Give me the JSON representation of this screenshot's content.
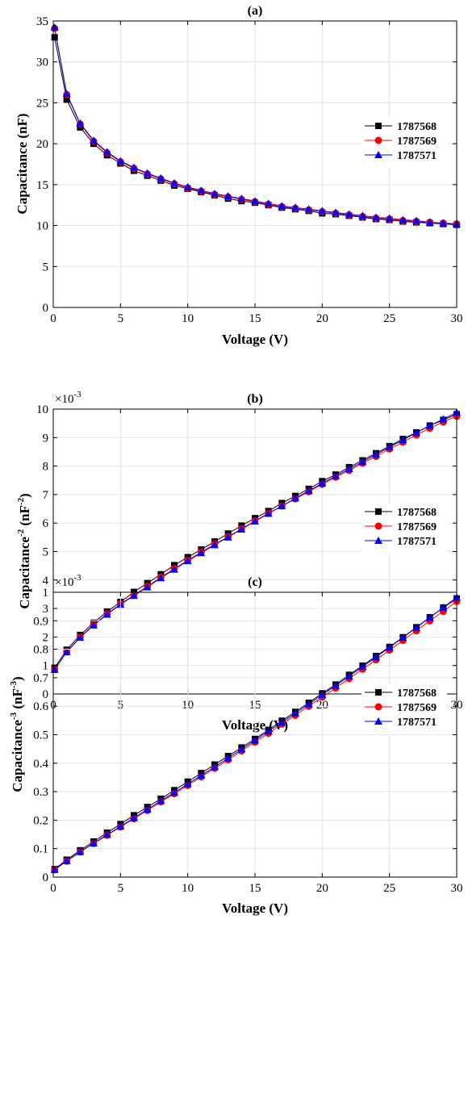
{
  "chart_data": [
    {
      "type": "line",
      "title": "(a)",
      "xlabel": "Voltage (V)",
      "ylabel": "Capacitance (nF)",
      "ylabel_sup": "",
      "ylabel_tail": "",
      "exponent": "",
      "xlim": [
        0,
        30
      ],
      "ylim": [
        0,
        35
      ],
      "xticks": [
        "0",
        "5",
        "10",
        "15",
        "20",
        "25",
        "30"
      ],
      "yticks": [
        "0",
        "5",
        "10",
        "15",
        "20",
        "25",
        "30",
        "35"
      ],
      "grid": true,
      "legend": "center-right",
      "x": [
        0.1,
        1,
        2,
        3,
        4,
        5,
        6,
        7,
        8,
        9,
        10,
        11,
        12,
        13,
        14,
        15,
        16,
        17,
        18,
        19,
        20,
        21,
        22,
        23,
        24,
        25,
        26,
        27,
        28,
        29,
        30
      ],
      "series": [
        {
          "name": "1787568",
          "color": "#000000",
          "marker": "square",
          "values": [
            33.0,
            25.4,
            22.0,
            20.0,
            18.6,
            17.6,
            16.7,
            16.1,
            15.5,
            14.9,
            14.5,
            14.1,
            13.7,
            13.3,
            13.0,
            12.8,
            12.5,
            12.2,
            12.0,
            11.8,
            11.5,
            11.4,
            11.2,
            11.0,
            10.8,
            10.7,
            10.5,
            10.4,
            10.3,
            10.2,
            10.1
          ]
        },
        {
          "name": "1787569",
          "color": "#ff0000",
          "marker": "circle",
          "values": [
            34.1,
            26.0,
            22.4,
            20.3,
            18.9,
            17.8,
            17.0,
            16.3,
            15.7,
            15.1,
            14.6,
            14.2,
            13.8,
            13.5,
            13.2,
            12.9,
            12.6,
            12.3,
            12.1,
            11.9,
            11.7,
            11.5,
            11.3,
            11.1,
            10.9,
            10.8,
            10.6,
            10.5,
            10.4,
            10.3,
            10.2
          ]
        },
        {
          "name": "1787571",
          "color": "#0000ff",
          "marker": "triangle",
          "values": [
            34.2,
            26.1,
            22.5,
            20.4,
            19.0,
            17.9,
            17.1,
            16.4,
            15.8,
            15.2,
            14.7,
            14.3,
            13.9,
            13.6,
            13.3,
            13.0,
            12.7,
            12.4,
            12.2,
            12.0,
            11.8,
            11.6,
            11.4,
            11.2,
            11.0,
            10.9,
            10.7,
            10.6,
            10.4,
            10.3,
            10.2
          ]
        }
      ]
    },
    {
      "type": "line",
      "title": "(b)",
      "xlabel": "Voltage (V)",
      "ylabel": "Capacitance",
      "ylabel_sup": "-2",
      "ylabel_tail": " (nF",
      "ylabel_tail_sup": "-2",
      "ylabel_close": ")",
      "exponent": "×10",
      "exponent_sup": "-3",
      "xlim": [
        0,
        30
      ],
      "ylim": [
        0,
        10
      ],
      "xticks": [
        "0",
        "5",
        "10",
        "15",
        "20",
        "25",
        "30"
      ],
      "yticks": [
        "0",
        "1",
        "2",
        "3",
        "4",
        "5",
        "6",
        "7",
        "8",
        "9",
        "10"
      ],
      "grid": true,
      "legend": "center-right",
      "x": [
        0.1,
        1,
        2,
        3,
        4,
        5,
        6,
        7,
        8,
        9,
        10,
        11,
        12,
        13,
        14,
        15,
        16,
        17,
        18,
        19,
        20,
        21,
        22,
        23,
        24,
        25,
        26,
        27,
        28,
        29,
        30
      ],
      "series": [
        {
          "name": "1787568",
          "color": "#000000",
          "marker": "square",
          "values": [
            0.92,
            1.55,
            2.07,
            2.5,
            2.89,
            3.23,
            3.58,
            3.89,
            4.2,
            4.52,
            4.8,
            5.07,
            5.35,
            5.63,
            5.91,
            6.17,
            6.42,
            6.7,
            6.95,
            7.2,
            7.47,
            7.7,
            7.96,
            8.2,
            8.45,
            8.7,
            8.95,
            9.18,
            9.42,
            9.62,
            9.82
          ]
        },
        {
          "name": "1787569",
          "color": "#ff0000",
          "marker": "circle",
          "values": [
            0.86,
            1.48,
            2.0,
            2.43,
            2.81,
            3.16,
            3.47,
            3.78,
            4.1,
            4.4,
            4.69,
            4.98,
            5.26,
            5.52,
            5.8,
            6.08,
            6.34,
            6.6,
            6.85,
            7.1,
            7.36,
            7.61,
            7.85,
            8.1,
            8.34,
            8.6,
            8.84,
            9.09,
            9.33,
            9.55,
            9.75
          ]
        },
        {
          "name": "1787571",
          "color": "#0000ff",
          "marker": "triangle",
          "values": [
            0.85,
            1.47,
            1.98,
            2.41,
            2.79,
            3.14,
            3.45,
            3.75,
            4.07,
            4.37,
            4.67,
            4.95,
            5.23,
            5.5,
            5.78,
            6.06,
            6.33,
            6.6,
            6.87,
            7.13,
            7.4,
            7.65,
            7.9,
            8.15,
            8.41,
            8.66,
            8.92,
            9.17,
            9.42,
            9.65,
            9.88
          ]
        }
      ]
    },
    {
      "type": "line",
      "title": "(c)",
      "xlabel": "Voltage (V)",
      "ylabel": "Capacitance",
      "ylabel_sup": "-3",
      "ylabel_tail": " (nF",
      "ylabel_tail_sup": "-3",
      "ylabel_close": ")",
      "exponent": "×10",
      "exponent_sup": "-3",
      "xlim": [
        0,
        30
      ],
      "ylim": [
        0,
        1
      ],
      "xticks": [
        "0",
        "5",
        "10",
        "15",
        "20",
        "25",
        "30"
      ],
      "yticks": [
        "0",
        "0.1",
        "0.2",
        "0.3",
        "0.4",
        "0.5",
        "0.6",
        "0.7",
        "0.8",
        "0.9",
        "1"
      ],
      "grid": true,
      "legend": "center-right",
      "x": [
        0.1,
        1,
        2,
        3,
        4,
        5,
        6,
        7,
        8,
        9,
        10,
        11,
        12,
        13,
        14,
        15,
        16,
        17,
        18,
        19,
        20,
        21,
        22,
        23,
        24,
        25,
        26,
        27,
        28,
        29,
        30
      ],
      "series": [
        {
          "name": "1787568",
          "color": "#000000",
          "marker": "square",
          "values": [
            0.028,
            0.061,
            0.094,
            0.125,
            0.156,
            0.186,
            0.217,
            0.246,
            0.275,
            0.305,
            0.335,
            0.365,
            0.395,
            0.425,
            0.455,
            0.485,
            0.517,
            0.549,
            0.58,
            0.612,
            0.645,
            0.676,
            0.71,
            0.742,
            0.776,
            0.808,
            0.842,
            0.877,
            0.912,
            0.946,
            0.978
          ]
        },
        {
          "name": "1787569",
          "color": "#ff0000",
          "marker": "circle",
          "values": [
            0.026,
            0.056,
            0.088,
            0.118,
            0.147,
            0.176,
            0.205,
            0.234,
            0.264,
            0.293,
            0.322,
            0.352,
            0.382,
            0.412,
            0.443,
            0.474,
            0.505,
            0.537,
            0.568,
            0.6,
            0.632,
            0.664,
            0.697,
            0.73,
            0.763,
            0.797,
            0.831,
            0.865,
            0.9,
            0.933,
            0.968
          ]
        },
        {
          "name": "1787571",
          "color": "#0000ff",
          "marker": "triangle",
          "values": [
            0.026,
            0.057,
            0.089,
            0.119,
            0.149,
            0.178,
            0.208,
            0.238,
            0.268,
            0.297,
            0.327,
            0.357,
            0.387,
            0.418,
            0.449,
            0.48,
            0.512,
            0.543,
            0.575,
            0.607,
            0.64,
            0.672,
            0.705,
            0.739,
            0.772,
            0.806,
            0.841,
            0.876,
            0.911,
            0.947,
            0.982
          ]
        }
      ]
    }
  ]
}
